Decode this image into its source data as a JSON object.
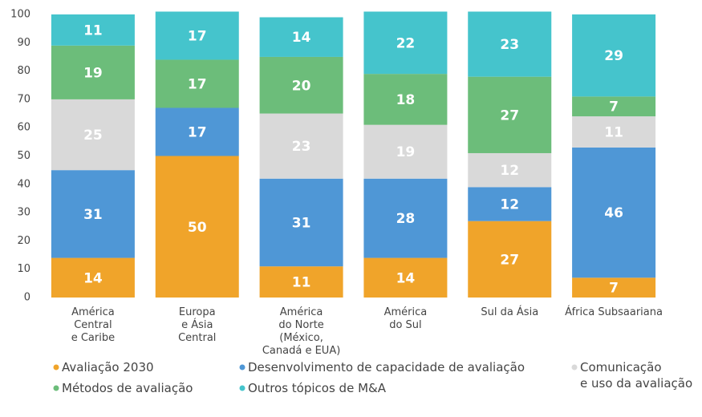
{
  "chart_data": {
    "type": "stacked_bar",
    "categories": [
      "América\nCentral\ne Caribe",
      "Europa\ne Ásia\nCentral",
      "América\ndo Norte\n(México,\nCanadá e EUA)",
      "América\ndo Sul",
      "Sul da Ásia",
      "África Subsaariana"
    ],
    "series": [
      {
        "name": "Avaliação 2030",
        "color": "#f0a42a",
        "values": [
          14,
          50,
          11,
          14,
          27,
          7
        ]
      },
      {
        "name": "Desenvolvimento de capacidade de avaliação",
        "color": "#4f97d6",
        "values": [
          31,
          17,
          31,
          28,
          12,
          46
        ]
      },
      {
        "name": "Comunicação\ne uso da avaliação",
        "color": "#d9d9d9",
        "values": [
          25,
          null,
          23,
          19,
          12,
          11
        ]
      },
      {
        "name": "Métodos de avaliação",
        "color": "#6cbd7a",
        "values": [
          19,
          17,
          20,
          18,
          27,
          7
        ]
      },
      {
        "name": "Outros tópicos de M&A",
        "color": "#45c4cc",
        "values": [
          11,
          17,
          14,
          22,
          23,
          29
        ]
      }
    ],
    "ylim": [
      0,
      100
    ],
    "yticks": [
      0,
      10,
      20,
      30,
      40,
      50,
      60,
      70,
      80,
      90,
      100
    ]
  }
}
